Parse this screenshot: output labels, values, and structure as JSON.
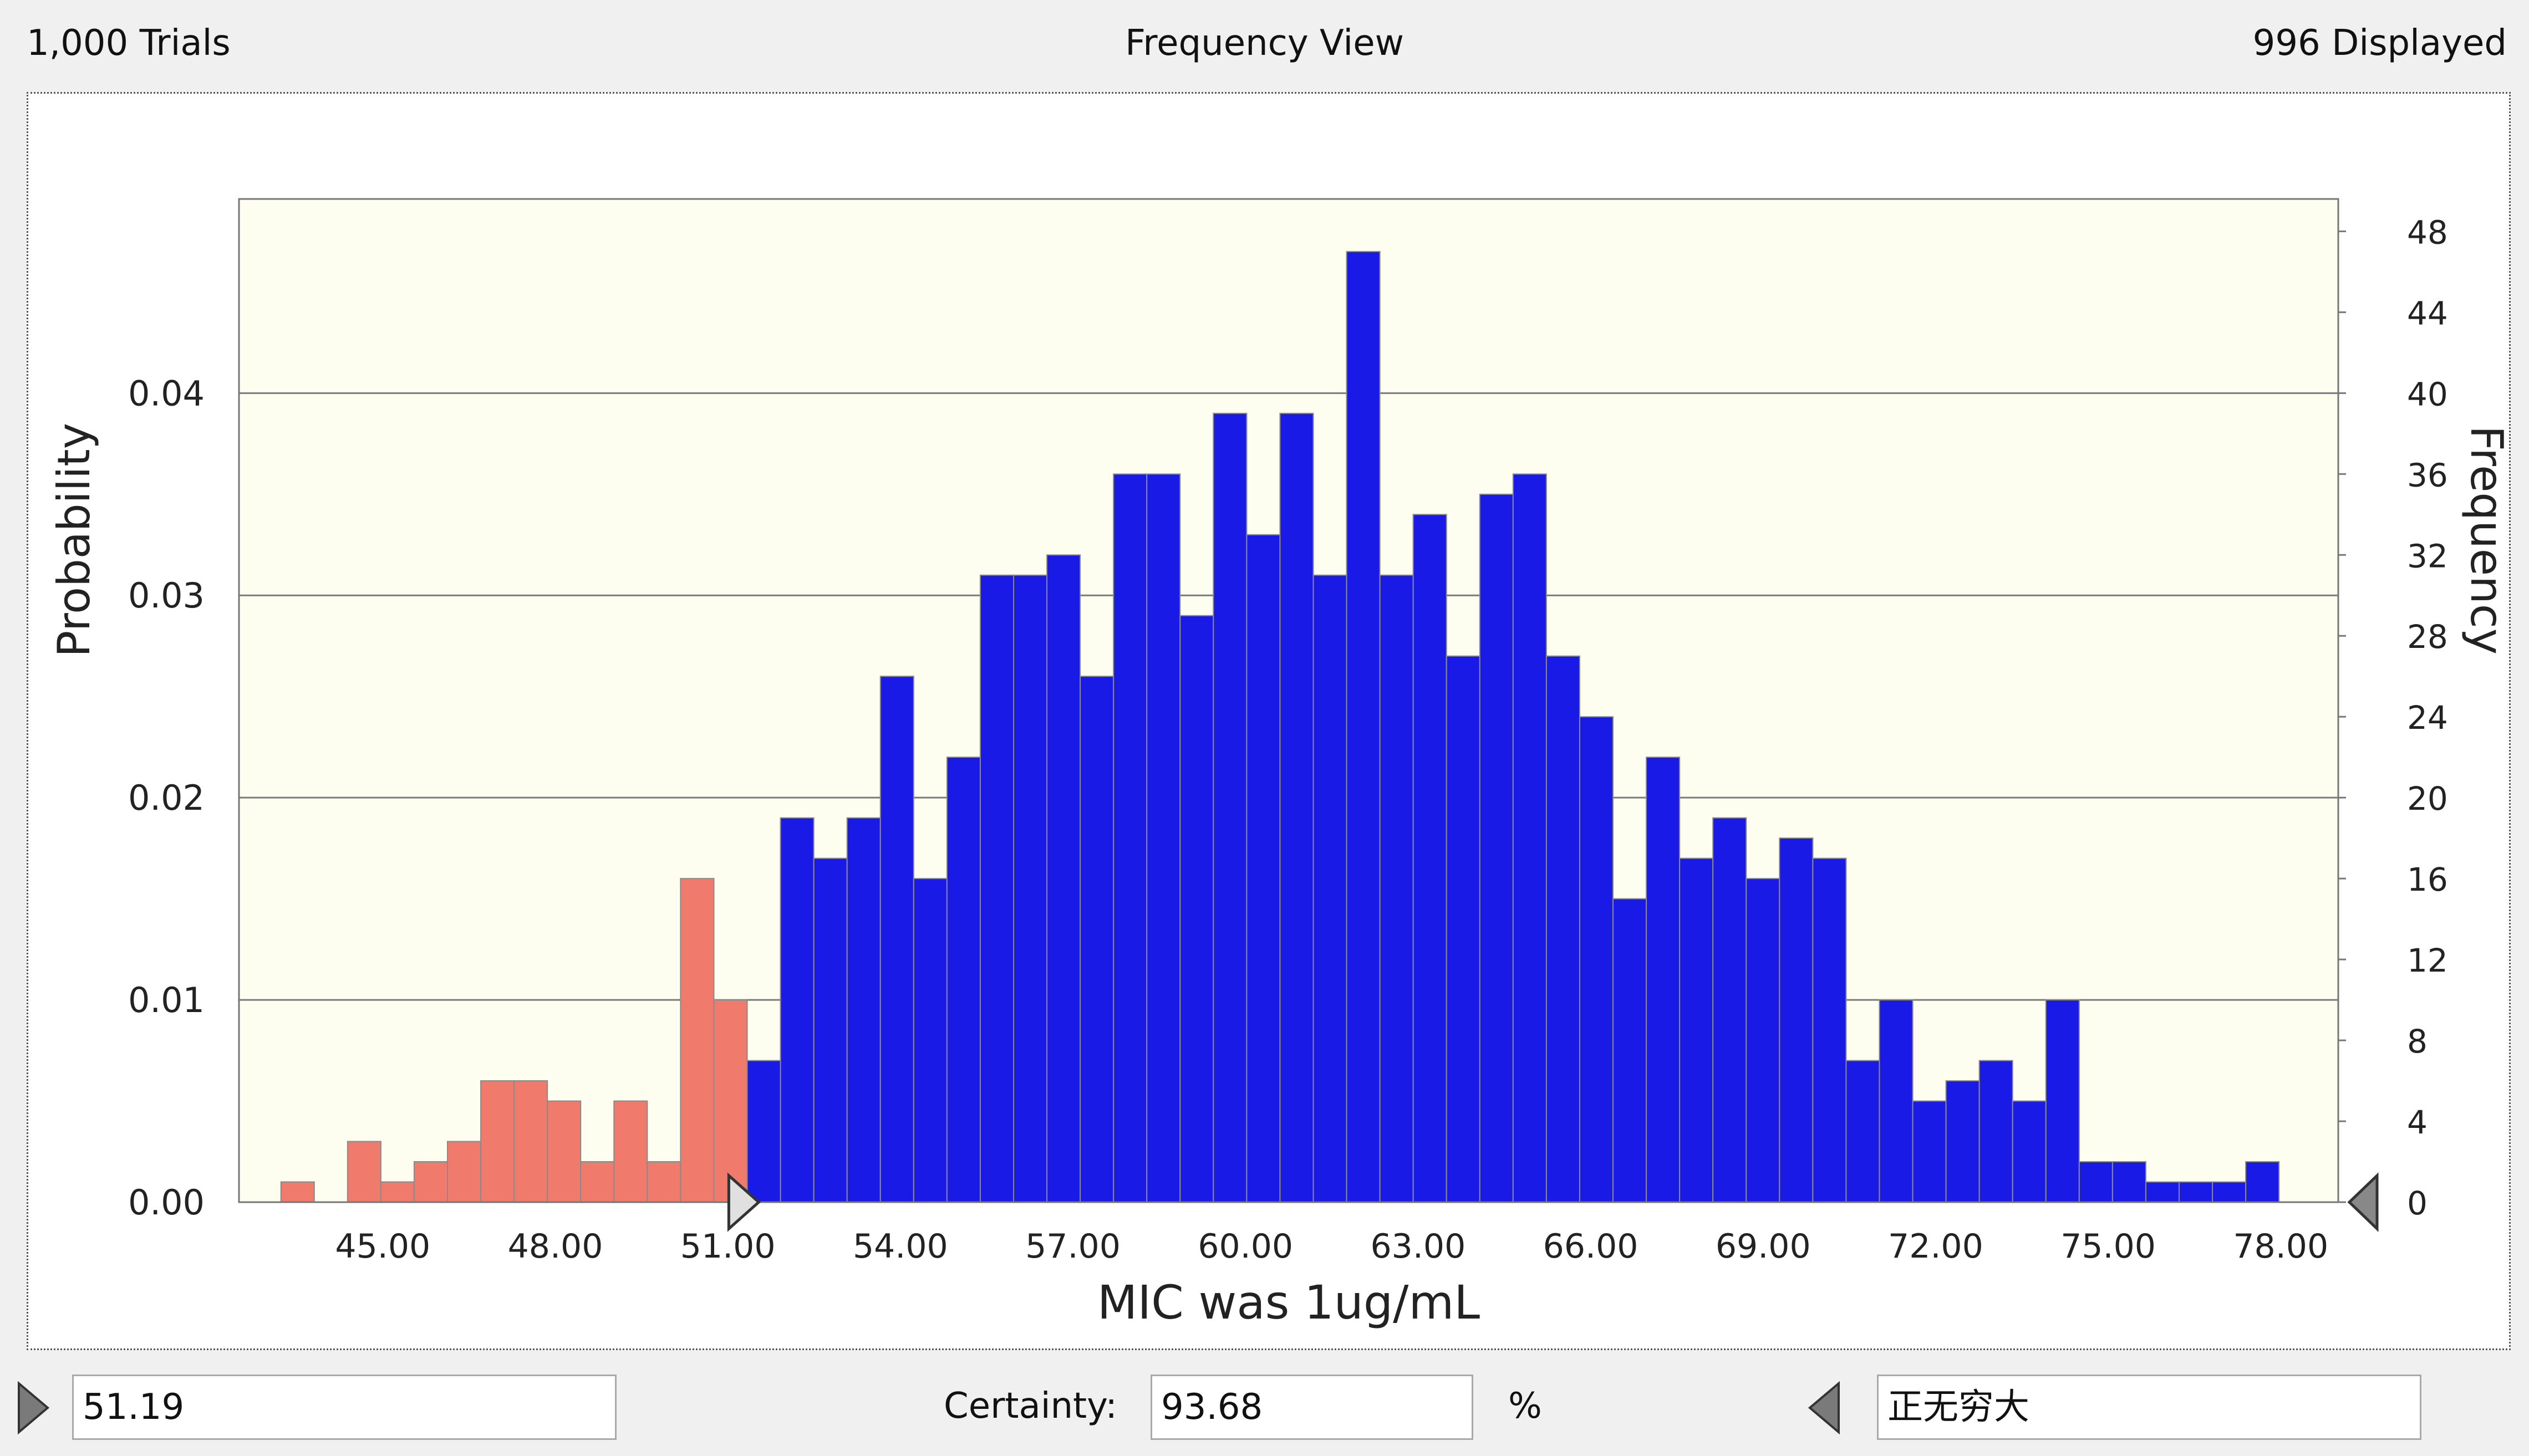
{
  "header": {
    "trials": "1,000 Trials",
    "view_title": "Frequency View",
    "displayed": "996 Displayed"
  },
  "footer": {
    "left_value": "51.19",
    "certainty_label": "Certainty:",
    "certainty_value": "93.68",
    "percent_sign": "%",
    "right_value": "正无穷大"
  },
  "colors": {
    "in_range_bar": "#1a1ae6",
    "out_range_bar": "#f07a6c",
    "plot_background": "#fdfdf0",
    "window_background": "#f0f0f0"
  },
  "chart_data": {
    "type": "bar",
    "xlabel": "MIC was 1ug/mL",
    "ylabel": "Probability",
    "y2label": "Frequency",
    "x_ticks": [
      "45.00",
      "48.00",
      "51.00",
      "54.00",
      "57.00",
      "60.00",
      "63.00",
      "66.00",
      "69.00",
      "72.00",
      "75.00",
      "78.00"
    ],
    "y_ticks": [
      "0.00",
      "0.01",
      "0.02",
      "0.03",
      "0.04"
    ],
    "y2_ticks": [
      "0",
      "4",
      "8",
      "12",
      "16",
      "20",
      "24",
      "28",
      "32",
      "36",
      "40",
      "44",
      "48"
    ],
    "xlim": [
      42.5,
      79.0
    ],
    "ylim": [
      0,
      0.0496
    ],
    "y2lim": [
      0,
      49.6
    ],
    "bin_start": 43.23,
    "bin_width": 0.579,
    "frequencies": [
      1,
      0,
      3,
      1,
      2,
      3,
      6,
      6,
      5,
      2,
      5,
      2,
      16,
      10,
      7,
      19,
      17,
      19,
      26,
      16,
      22,
      31,
      31,
      32,
      26,
      36,
      36,
      29,
      39,
      33,
      39,
      31,
      47,
      31,
      34,
      27,
      35,
      36,
      27,
      24,
      15,
      22,
      17,
      19,
      16,
      18,
      17,
      7,
      10,
      5,
      6,
      7,
      5,
      10,
      2,
      2,
      1,
      1,
      1,
      2
    ],
    "certainty_lower": 51.19,
    "certainty_upper": "正无穷大",
    "certainty_percent": 93.68,
    "grid": true
  }
}
